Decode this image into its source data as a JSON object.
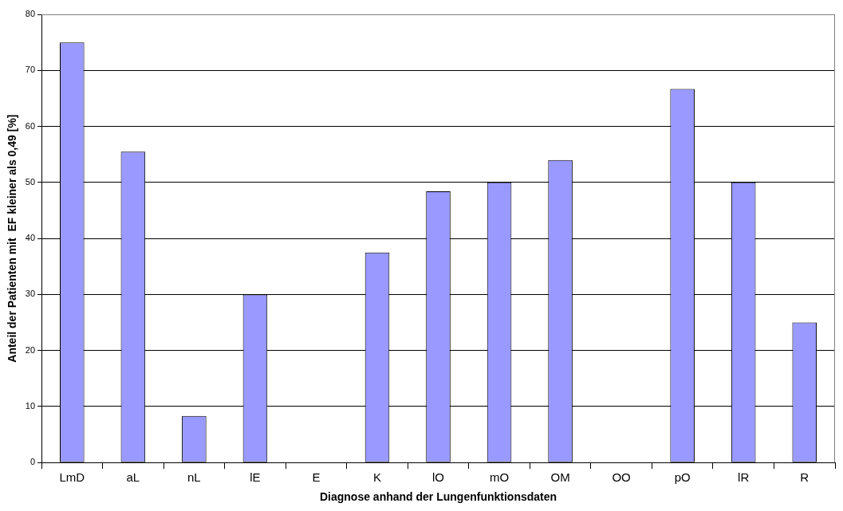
{
  "chart_data": {
    "type": "bar",
    "xlabel": "Diagnose anhand der Lungenfunktionsdaten",
    "ylabel": "Anteil der Patienten mit  EF kleiner als 0,49 [%]",
    "categories": [
      "LmD",
      "aL",
      "nL",
      "lE",
      "E",
      "K",
      "lO",
      "mO",
      "OM",
      "OO",
      "pO",
      "lR",
      "R"
    ],
    "values": [
      75,
      55.5,
      8.3,
      30,
      0,
      37.5,
      48.4,
      50,
      54,
      0,
      66.7,
      50,
      25
    ],
    "color": "#9999ff",
    "ylim": [
      0,
      80
    ],
    "yticks": [
      0,
      10,
      20,
      30,
      40,
      50,
      60,
      70,
      80
    ],
    "grid": "y",
    "legend": false
  }
}
